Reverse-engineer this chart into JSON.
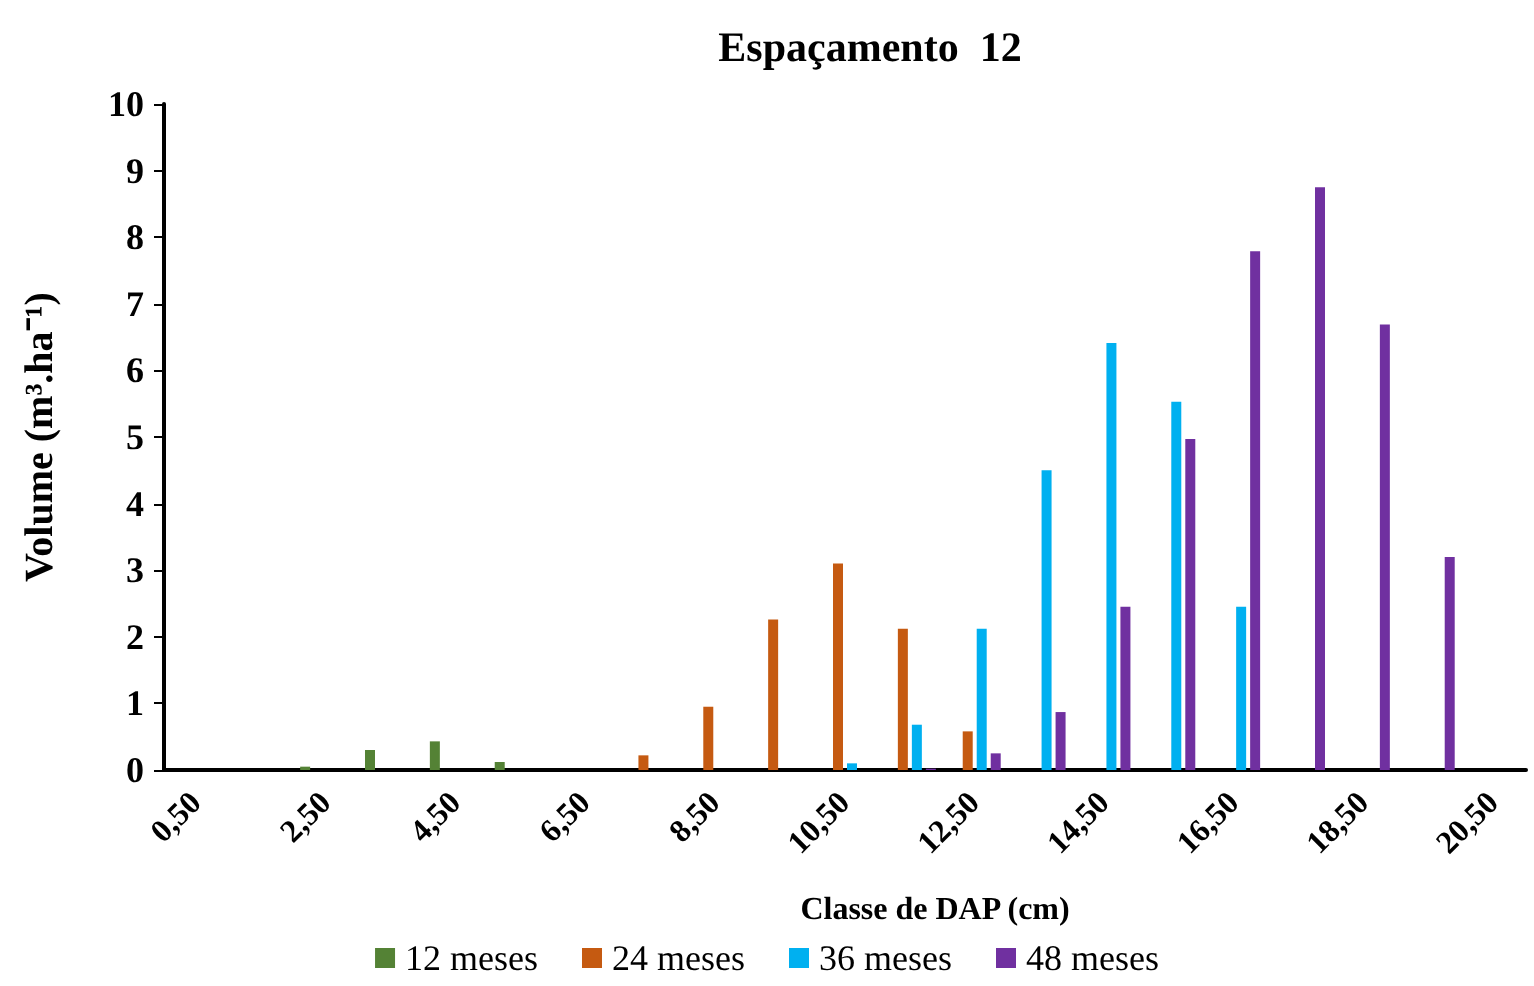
{
  "chart_data": {
    "type": "bar",
    "title": "Espaçamento  12",
    "xlabel": "Classe de DAP (cm)",
    "ylabel": "Volume (m³.ha⁻¹)",
    "categories": [
      "0,50",
      null,
      "2,50",
      null,
      "4,50",
      null,
      "6,50",
      null,
      "8,50",
      null,
      "10,50",
      null,
      "12,50",
      null,
      "14,50",
      null,
      "16,50",
      null,
      "18,50",
      null,
      "20,50"
    ],
    "series": [
      {
        "name": "12 meses",
        "color": "#548235",
        "values": [
          null,
          null,
          0.05,
          0.3,
          0.43,
          0.12,
          null,
          null,
          null,
          null,
          null,
          null,
          null,
          null,
          null,
          null,
          null,
          null,
          null,
          null,
          null
        ]
      },
      {
        "name": "24 meses",
        "color": "#c55a11",
        "values": [
          null,
          null,
          null,
          null,
          null,
          null,
          null,
          0.22,
          0.95,
          2.26,
          3.1,
          2.12,
          0.58,
          null,
          null,
          null,
          null,
          null,
          null,
          null,
          null
        ]
      },
      {
        "name": "36 meses",
        "color": "#00b0f0",
        "values": [
          null,
          null,
          null,
          null,
          null,
          null,
          null,
          null,
          null,
          null,
          0.1,
          0.68,
          2.12,
          4.5,
          6.41,
          5.53,
          2.45,
          null,
          null,
          null,
          null
        ]
      },
      {
        "name": "48 meses",
        "color": "#7030a0",
        "values": [
          null,
          null,
          null,
          null,
          null,
          null,
          null,
          null,
          null,
          null,
          null,
          0.02,
          0.25,
          0.87,
          2.45,
          4.97,
          7.79,
          8.75,
          6.69,
          3.2,
          null
        ]
      }
    ],
    "ylim": [
      0,
      10
    ],
    "yticks": [
      0,
      1,
      2,
      3,
      4,
      5,
      6,
      7,
      8,
      9,
      10
    ],
    "grid": false,
    "legend": "bottom"
  }
}
